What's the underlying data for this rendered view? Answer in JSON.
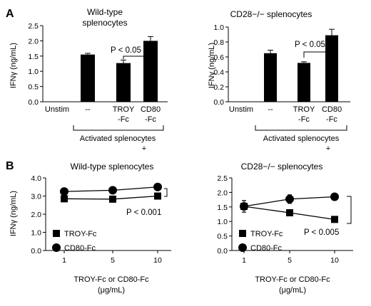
{
  "panel_letters": [
    "A",
    "B"
  ],
  "chart_data": [
    {
      "type": "bar",
      "panel": "A",
      "title": [
        "Wild-type",
        "splenocytes"
      ],
      "ylabel": "IFNγ (ng/mL)",
      "ylim": [
        0,
        2.5
      ],
      "yticks": [
        "0.0",
        "0.5",
        "1.0",
        "1.5",
        "2.0",
        "2.5"
      ],
      "categories": [
        [
          "Unstim"
        ],
        [
          "--"
        ],
        [
          "TROY",
          "-Fc"
        ],
        [
          "CD80",
          "-Fc"
        ]
      ],
      "values": [
        0,
        1.55,
        1.27,
        2.0
      ],
      "errors": [
        0,
        0.04,
        0.1,
        0.14
      ],
      "bar_color": "#000000",
      "annotation": "P < 0.05",
      "group_label": [
        "Activated splenocytes",
        "+"
      ]
    },
    {
      "type": "bar",
      "panel": "A",
      "title": [
        "CD28−/− splenocytes"
      ],
      "ylabel": "IFNγ (ng/mL)",
      "ylim": [
        0,
        1.0
      ],
      "yticks": [
        "0.0",
        "0.2",
        "0.4",
        "0.6",
        "0.8",
        "1.0"
      ],
      "categories": [
        [
          "Unstim"
        ],
        [
          "--"
        ],
        [
          "TROY",
          "-Fc"
        ],
        [
          "CD80",
          "-Fc"
        ]
      ],
      "values": [
        0,
        0.65,
        0.52,
        0.89
      ],
      "errors": [
        0,
        0.04,
        0.015,
        0.08
      ],
      "bar_color": "#000000",
      "annotation": "P < 0.05",
      "group_label": [
        "Activated splenocytes",
        "+"
      ]
    },
    {
      "type": "line",
      "panel": "B",
      "title": [
        "Wild-type splenocytes"
      ],
      "ylabel": "IFNγ (ng/mL)",
      "xlabel": [
        "TROY-Fc or CD80-Fc",
        "(μg/mL)"
      ],
      "x": [
        "1",
        "5",
        "10"
      ],
      "ylim": [
        0,
        4.0
      ],
      "yticks": [
        "0.0",
        "1.0",
        "2.0",
        "3.0",
        "4.0"
      ],
      "series": [
        {
          "name": "TROY-Fc",
          "marker": "square",
          "values": [
            2.85,
            2.83,
            3.0
          ],
          "errors": [
            0.04,
            0.05,
            0.17
          ]
        },
        {
          "name": "CD80-Fc",
          "marker": "circle",
          "values": [
            3.25,
            3.32,
            3.5
          ],
          "errors": [
            0.04,
            0.05,
            0.05
          ]
        }
      ],
      "annotation": "P < 0.001"
    },
    {
      "type": "line",
      "panel": "B",
      "title": [
        "CD28−/− splenocytes"
      ],
      "ylabel": "",
      "xlabel": [
        "TROY-Fc or CD80-Fc",
        "(μg/mL)"
      ],
      "x": [
        "1",
        "5",
        "10"
      ],
      "ylim": [
        0,
        2.5
      ],
      "yticks": [
        "0.0",
        "0.5",
        "1.0",
        "1.5",
        "2.0",
        "2.5"
      ],
      "series": [
        {
          "name": "TROY-Fc",
          "marker": "square",
          "values": [
            1.52,
            1.3,
            1.07
          ],
          "errors": [
            0.2,
            0.05,
            0.05
          ]
        },
        {
          "name": "CD80-Fc",
          "marker": "circle",
          "values": [
            1.52,
            1.77,
            1.85
          ],
          "errors": [
            0.2,
            0.15,
            0.12
          ]
        }
      ],
      "annotation": "P < 0.005"
    }
  ]
}
